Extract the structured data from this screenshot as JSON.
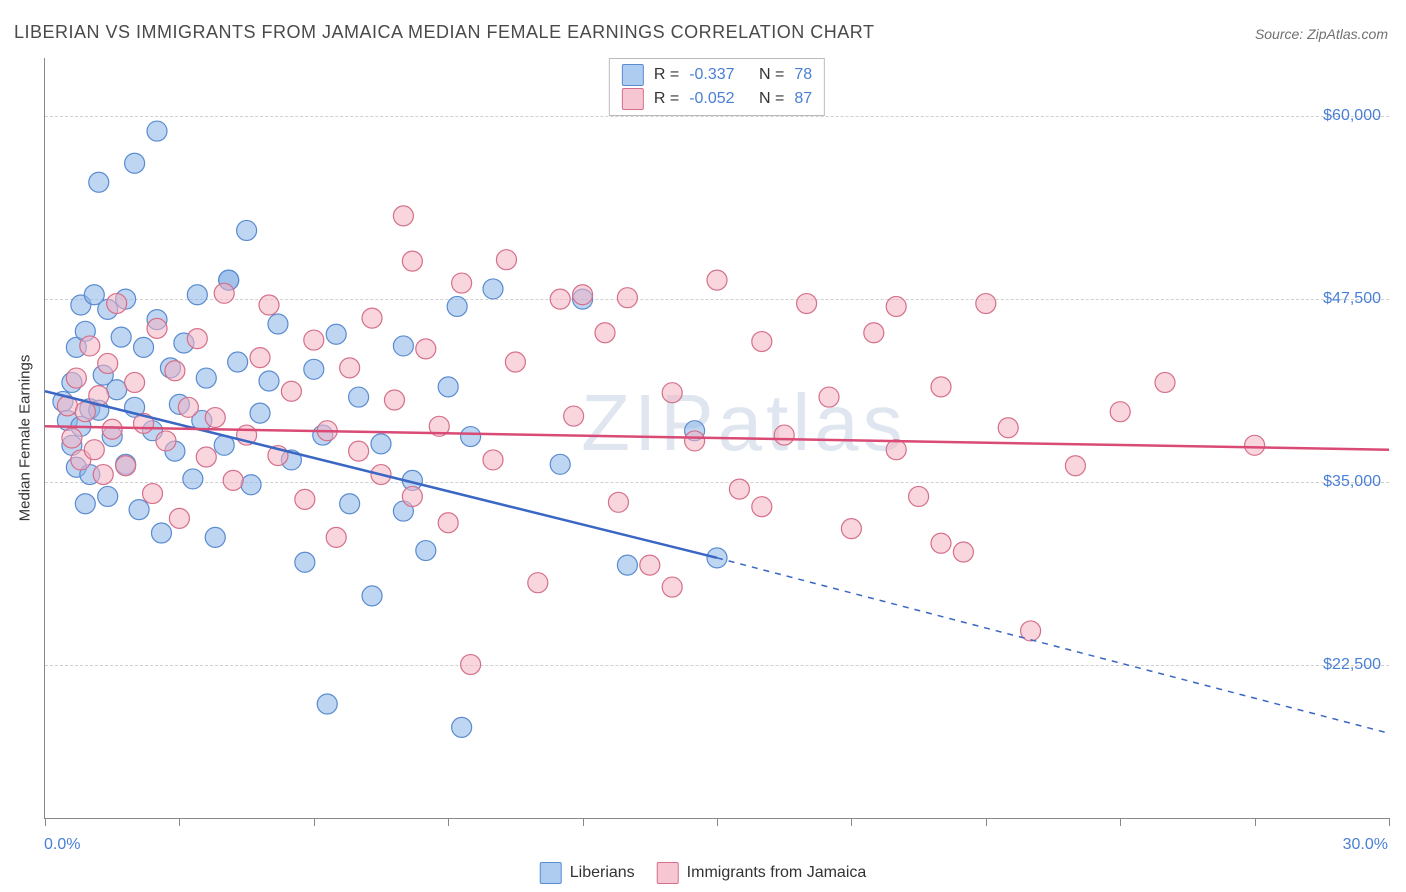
{
  "title": "LIBERIAN VS IMMIGRANTS FROM JAMAICA MEDIAN FEMALE EARNINGS CORRELATION CHART",
  "source": "Source: ZipAtlas.com",
  "watermark": "ZIPatlas",
  "yaxis_title": "Median Female Earnings",
  "chart": {
    "type": "scatter",
    "background_color": "#ffffff",
    "grid_color": "#d0d0d0",
    "axis_color": "#888888",
    "tick_label_color": "#4a7fd6",
    "xlim": [
      0,
      30
    ],
    "ylim": [
      12000,
      64000
    ],
    "y_gridlines": [
      22500,
      35000,
      47500,
      60000
    ],
    "y_tick_labels": [
      "$22,500",
      "$35,000",
      "$47,500",
      "$60,000"
    ],
    "x_ticks": [
      0,
      3,
      6,
      9,
      12,
      15,
      18,
      21,
      24,
      27,
      30
    ],
    "x_tick_labels": {
      "min": "0.0%",
      "max": "30.0%"
    },
    "marker_radius": 10,
    "marker_opacity": 0.55,
    "trend_line_width": 2.5,
    "series": [
      {
        "name": "Liberians",
        "color": "#8ab4e8",
        "stroke": "#5a8bd0",
        "trend_color": "#3a66c4",
        "R": "-0.337",
        "N": "78",
        "trend": {
          "x0": 0,
          "y0": 41200,
          "x_solid_end": 15,
          "y_solid_end": 29800,
          "x1": 30,
          "y1": 17800
        },
        "points": [
          [
            0.4,
            40500
          ],
          [
            0.5,
            39200
          ],
          [
            0.6,
            41800
          ],
          [
            0.6,
            37500
          ],
          [
            0.7,
            44200
          ],
          [
            0.7,
            36000
          ],
          [
            0.8,
            47100
          ],
          [
            0.8,
            38800
          ],
          [
            0.9,
            33500
          ],
          [
            0.9,
            45300
          ],
          [
            1.0,
            40000
          ],
          [
            1.0,
            35500
          ],
          [
            1.1,
            47800
          ],
          [
            1.2,
            55500
          ],
          [
            1.2,
            39900
          ],
          [
            1.3,
            42300
          ],
          [
            1.4,
            46800
          ],
          [
            1.4,
            34000
          ],
          [
            1.5,
            38100
          ],
          [
            1.6,
            41300
          ],
          [
            1.7,
            44900
          ],
          [
            1.8,
            36200
          ],
          [
            1.8,
            47500
          ],
          [
            2.0,
            40100
          ],
          [
            2.0,
            56800
          ],
          [
            2.1,
            33100
          ],
          [
            2.2,
            44200
          ],
          [
            2.4,
            38500
          ],
          [
            2.5,
            46100
          ],
          [
            2.6,
            31500
          ],
          [
            2.8,
            42800
          ],
          [
            2.5,
            59000
          ],
          [
            2.9,
            37100
          ],
          [
            3.0,
            40300
          ],
          [
            3.1,
            44500
          ],
          [
            3.3,
            35200
          ],
          [
            3.4,
            47800
          ],
          [
            3.5,
            39200
          ],
          [
            3.6,
            42100
          ],
          [
            3.8,
            31200
          ],
          [
            4.0,
            37500
          ],
          [
            4.1,
            48800
          ],
          [
            4.1,
            48800
          ],
          [
            4.3,
            43200
          ],
          [
            4.5,
            52200
          ],
          [
            4.6,
            34800
          ],
          [
            4.8,
            39700
          ],
          [
            5.0,
            41900
          ],
          [
            5.2,
            45800
          ],
          [
            5.5,
            36500
          ],
          [
            5.8,
            29500
          ],
          [
            6.0,
            42700
          ],
          [
            6.2,
            38200
          ],
          [
            6.5,
            45100
          ],
          [
            6.8,
            33500
          ],
          [
            6.3,
            19800
          ],
          [
            7.0,
            40800
          ],
          [
            7.3,
            27200
          ],
          [
            7.5,
            37600
          ],
          [
            8.0,
            44300
          ],
          [
            8.2,
            35100
          ],
          [
            8.0,
            33000
          ],
          [
            8.5,
            30300
          ],
          [
            9.0,
            41500
          ],
          [
            9.2,
            47000
          ],
          [
            9.5,
            38100
          ],
          [
            9.3,
            18200
          ],
          [
            10.0,
            48200
          ],
          [
            11.5,
            36200
          ],
          [
            12.0,
            47500
          ],
          [
            13.0,
            29300
          ],
          [
            14.5,
            38500
          ],
          [
            15.0,
            29800
          ]
        ]
      },
      {
        "name": "Immigrants from Jamaica",
        "color": "#f4b3c2",
        "stroke": "#d56f8a",
        "trend_color": "#d94a75",
        "R": "-0.052",
        "N": "87",
        "trend": {
          "x0": 0,
          "y0": 38800,
          "x_solid_end": 30,
          "y_solid_end": 37200,
          "x1": 30,
          "y1": 37200
        },
        "points": [
          [
            0.5,
            40200
          ],
          [
            0.6,
            38000
          ],
          [
            0.7,
            42100
          ],
          [
            0.8,
            36500
          ],
          [
            0.9,
            39800
          ],
          [
            1.0,
            44300
          ],
          [
            1.1,
            37200
          ],
          [
            1.2,
            40900
          ],
          [
            1.3,
            35500
          ],
          [
            1.4,
            43100
          ],
          [
            1.5,
            38600
          ],
          [
            1.6,
            47200
          ],
          [
            1.8,
            36100
          ],
          [
            2.0,
            41800
          ],
          [
            2.2,
            39000
          ],
          [
            2.4,
            34200
          ],
          [
            2.5,
            45500
          ],
          [
            2.7,
            37800
          ],
          [
            2.9,
            42600
          ],
          [
            3.0,
            32500
          ],
          [
            3.2,
            40100
          ],
          [
            3.4,
            44800
          ],
          [
            3.6,
            36700
          ],
          [
            3.8,
            39400
          ],
          [
            4.0,
            47900
          ],
          [
            4.2,
            35100
          ],
          [
            4.5,
            38200
          ],
          [
            4.8,
            43500
          ],
          [
            5.0,
            47100
          ],
          [
            5.2,
            36800
          ],
          [
            5.5,
            41200
          ],
          [
            5.8,
            33800
          ],
          [
            6.0,
            44700
          ],
          [
            6.3,
            38500
          ],
          [
            6.5,
            31200
          ],
          [
            6.8,
            42800
          ],
          [
            7.0,
            37100
          ],
          [
            7.3,
            46200
          ],
          [
            7.5,
            35500
          ],
          [
            7.8,
            40600
          ],
          [
            8.0,
            53200
          ],
          [
            8.2,
            34000
          ],
          [
            8.2,
            50100
          ],
          [
            8.5,
            44100
          ],
          [
            8.8,
            38800
          ],
          [
            9.0,
            32200
          ],
          [
            9.3,
            48600
          ],
          [
            9.5,
            22500
          ],
          [
            10.0,
            36500
          ],
          [
            10.3,
            50200
          ],
          [
            10.5,
            43200
          ],
          [
            11.0,
            28100
          ],
          [
            11.5,
            47500
          ],
          [
            11.8,
            39500
          ],
          [
            12.0,
            47800
          ],
          [
            12.5,
            45200
          ],
          [
            12.8,
            33600
          ],
          [
            13.0,
            47600
          ],
          [
            13.5,
            29300
          ],
          [
            14.0,
            41100
          ],
          [
            14.0,
            27800
          ],
          [
            14.5,
            37800
          ],
          [
            15.0,
            48800
          ],
          [
            15.5,
            34500
          ],
          [
            16.0,
            44600
          ],
          [
            16.0,
            33300
          ],
          [
            16.5,
            38200
          ],
          [
            17.0,
            47200
          ],
          [
            17.5,
            40800
          ],
          [
            18.0,
            31800
          ],
          [
            18.5,
            45200
          ],
          [
            19.0,
            47000
          ],
          [
            19.0,
            37200
          ],
          [
            19.5,
            34000
          ],
          [
            20.0,
            41500
          ],
          [
            20.0,
            30800
          ],
          [
            20.5,
            30200
          ],
          [
            21.0,
            47200
          ],
          [
            21.5,
            38700
          ],
          [
            22.0,
            24800
          ],
          [
            23.0,
            36100
          ],
          [
            24.0,
            39800
          ],
          [
            25.0,
            41800
          ],
          [
            27.0,
            37500
          ]
        ]
      }
    ]
  },
  "bottom_legend": [
    {
      "swatch": "blue",
      "label": "Liberians"
    },
    {
      "swatch": "pink",
      "label": "Immigrants from Jamaica"
    }
  ]
}
